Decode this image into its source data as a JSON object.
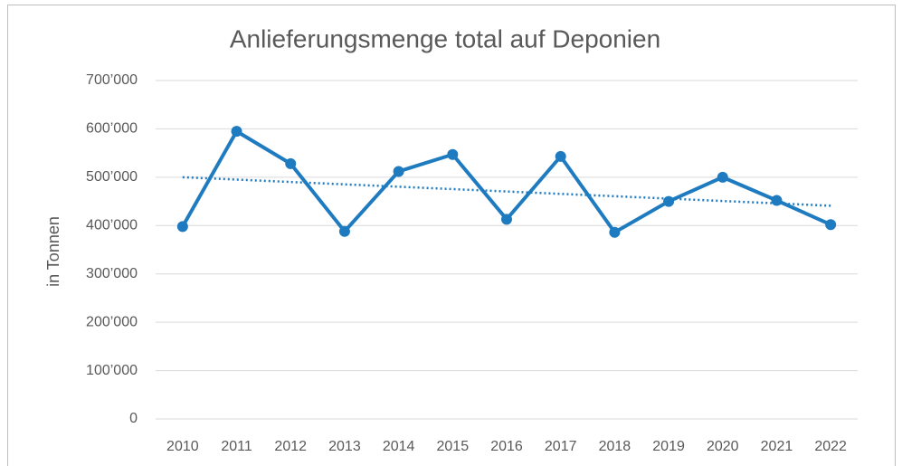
{
  "chart_data": {
    "type": "line",
    "title": "Anlieferungsmenge total auf Deponien",
    "y_label": "in Tonnen",
    "categories": [
      "2010",
      "2011",
      "2012",
      "2013",
      "2014",
      "2015",
      "2016",
      "2017",
      "2018",
      "2019",
      "2020",
      "2021",
      "2022"
    ],
    "series": [
      {
        "color": "#1f7bc0",
        "values": [
          398000,
          595000,
          528000,
          388000,
          512000,
          547000,
          413000,
          543000,
          386000,
          450000,
          500000,
          452000,
          402000
        ]
      }
    ],
    "trendline": {
      "start": 500000,
      "end": 441000,
      "color": "#1f7bc0"
    },
    "ylim": [
      0,
      700000
    ],
    "yticks": [
      0,
      {
        "value": 100000,
        "label": "100’000"
      },
      {
        "value": 200000,
        "label": "200’000"
      },
      {
        "value": 300000,
        "label": "300’000"
      },
      {
        "value": 400000,
        "label": "400’000"
      },
      {
        "value": 500000,
        "label": "500’000"
      },
      {
        "value": 600000,
        "label": "600’000"
      },
      {
        "value": 700000,
        "label": "700’000"
      }
    ],
    "grid": true
  }
}
